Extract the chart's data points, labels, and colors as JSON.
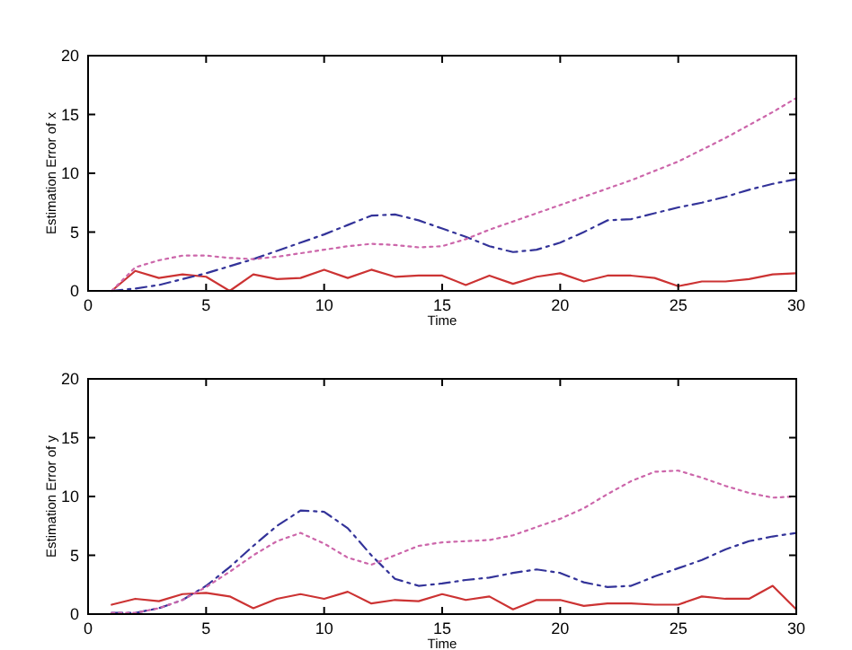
{
  "chart_data": [
    {
      "type": "line",
      "xlabel": "Time",
      "ylabel": "Estimation Error of x",
      "x": [
        1,
        2,
        3,
        4,
        5,
        6,
        7,
        8,
        9,
        10,
        11,
        12,
        13,
        14,
        15,
        16,
        17,
        18,
        19,
        20,
        21,
        22,
        23,
        24,
        25,
        26,
        27,
        28,
        29,
        30
      ],
      "xlim": [
        0,
        30
      ],
      "xticks": [
        0,
        5,
        10,
        15,
        20,
        25,
        30
      ],
      "ylim": [
        0,
        20
      ],
      "yticks": [
        0,
        5,
        10,
        15,
        20
      ],
      "series": [
        {
          "color": "#cc3333",
          "line_style": "solid",
          "values": [
            0,
            1.7,
            1.1,
            1.4,
            1.2,
            0,
            1.4,
            1.0,
            1.1,
            1.8,
            1.1,
            1.8,
            1.2,
            1.3,
            1.3,
            0.5,
            1.3,
            0.6,
            1.2,
            1.5,
            0.8,
            1.3,
            1.3,
            1.1,
            0.4,
            0.8,
            0.8,
            1.0,
            1.4,
            1.5
          ]
        },
        {
          "color": "#333399",
          "line_style": "dashed",
          "values": [
            0,
            0.2,
            0.5,
            1.0,
            1.5,
            2.1,
            2.7,
            3.4,
            4.1,
            4.8,
            5.6,
            6.4,
            6.5,
            6.0,
            5.3,
            4.6,
            3.8,
            3.3,
            3.5,
            4.1,
            5.0,
            6.0,
            6.1,
            6.6,
            7.1,
            7.5,
            8.0,
            8.6,
            9.1,
            9.5
          ]
        },
        {
          "color": "#cc66aa",
          "line_style": "dotted",
          "values": [
            0,
            2.0,
            2.6,
            3.0,
            3.0,
            2.8,
            2.7,
            2.9,
            3.2,
            3.5,
            3.8,
            4.0,
            3.9,
            3.7,
            3.8,
            4.4,
            5.2,
            5.9,
            6.6,
            7.3,
            8.0,
            8.7,
            9.4,
            10.2,
            11.0,
            12.0,
            13.0,
            14.1,
            15.2,
            16.4
          ]
        }
      ]
    },
    {
      "type": "line",
      "xlabel": "Time",
      "ylabel": "Estimation Error of y",
      "x": [
        1,
        2,
        3,
        4,
        5,
        6,
        7,
        8,
        9,
        10,
        11,
        12,
        13,
        14,
        15,
        16,
        17,
        18,
        19,
        20,
        21,
        22,
        23,
        24,
        25,
        26,
        27,
        28,
        29,
        30
      ],
      "xlim": [
        0,
        30
      ],
      "xticks": [
        0,
        5,
        10,
        15,
        20,
        25,
        30
      ],
      "ylim": [
        0,
        20
      ],
      "yticks": [
        0,
        5,
        10,
        15,
        20
      ],
      "series": [
        {
          "color": "#cc3333",
          "line_style": "solid",
          "values": [
            0.8,
            1.3,
            1.1,
            1.7,
            1.8,
            1.5,
            0.5,
            1.3,
            1.7,
            1.3,
            1.9,
            0.9,
            1.2,
            1.1,
            1.7,
            1.2,
            1.5,
            0.4,
            1.2,
            1.2,
            0.7,
            0.9,
            0.9,
            0.8,
            0.8,
            1.5,
            1.3,
            1.3,
            2.4,
            0.4
          ]
        },
        {
          "color": "#333399",
          "line_style": "dashed",
          "values": [
            0.1,
            0.1,
            0.5,
            1.2,
            2.4,
            4.0,
            5.8,
            7.5,
            8.8,
            8.7,
            7.3,
            5.0,
            3.0,
            2.4,
            2.6,
            2.9,
            3.1,
            3.5,
            3.8,
            3.5,
            2.7,
            2.3,
            2.4,
            3.2,
            3.9,
            4.6,
            5.5,
            6.2,
            6.6,
            6.9
          ]
        },
        {
          "color": "#cc66aa",
          "line_style": "dotted",
          "values": [
            0.1,
            0.1,
            0.5,
            1.2,
            2.3,
            3.6,
            5.0,
            6.2,
            6.9,
            6.0,
            4.8,
            4.2,
            5.0,
            5.8,
            6.1,
            6.2,
            6.3,
            6.7,
            7.4,
            8.1,
            9.0,
            10.2,
            11.3,
            12.1,
            12.2,
            11.6,
            10.9,
            10.3,
            9.9,
            10.0
          ]
        }
      ]
    }
  ]
}
